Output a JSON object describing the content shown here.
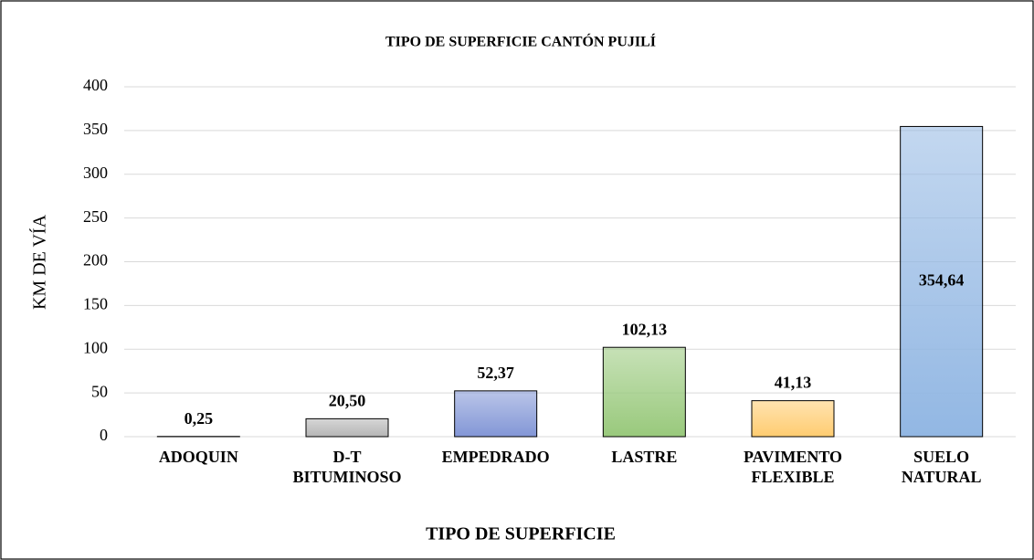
{
  "chart_data": {
    "type": "bar",
    "title": "TIPO DE SUPERFICIE CANTÓN PUJILÍ",
    "x_label": "TIPO DE SUPERFICIE",
    "y_label": "KM DE VÍA",
    "categories": [
      "ADOQUIN",
      "D-T BITUMINOSO",
      "EMPEDRADO",
      "LASTRE",
      "PAVIMENTO FLEXIBLE",
      "SUELO NATURAL"
    ],
    "values": [
      0.25,
      20.5,
      52.37,
      102.13,
      41.13,
      354.64
    ],
    "value_labels": [
      "0,25",
      "20,50",
      "52,37",
      "102,13",
      "41,13",
      "354,64"
    ],
    "colors": [
      "#c9a27a",
      "#b5b5b5",
      "#8296d6",
      "#99c97c",
      "#ffcc70",
      "#92b7e3"
    ],
    "ylim": [
      0,
      400
    ],
    "yticks": [
      0,
      50,
      100,
      150,
      200,
      250,
      300,
      350,
      400
    ],
    "grid": true
  }
}
